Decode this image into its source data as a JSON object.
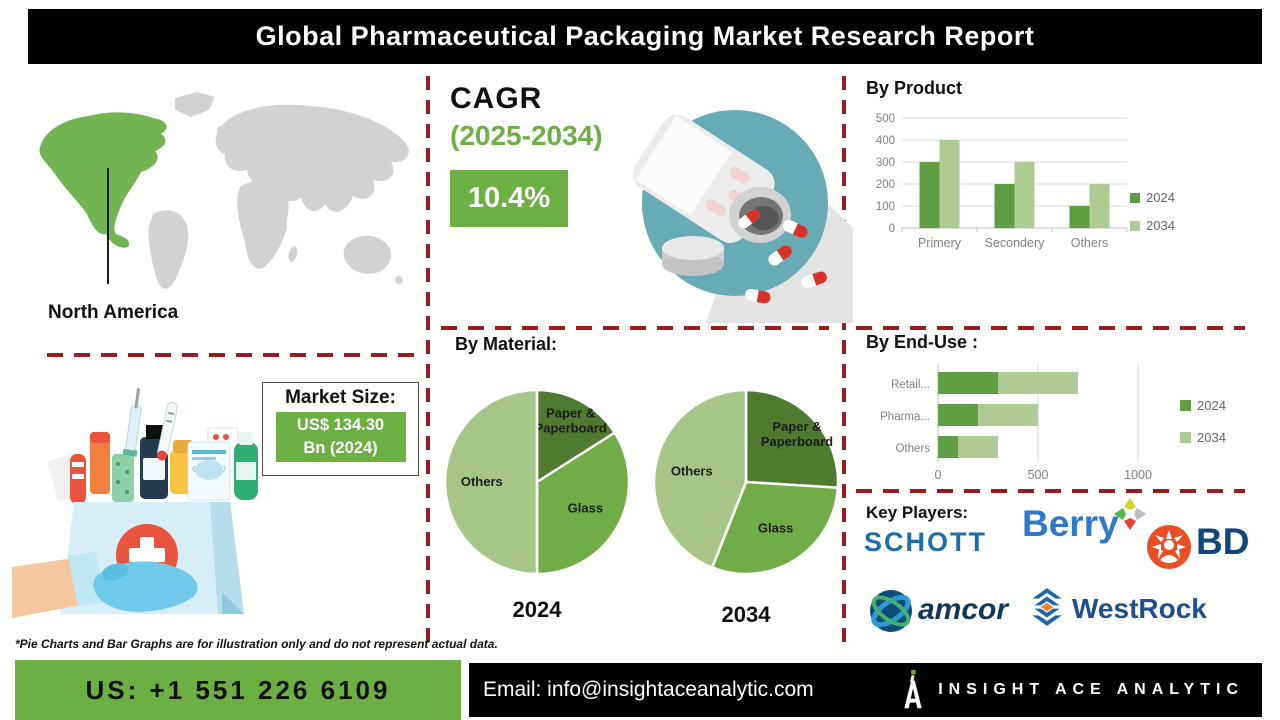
{
  "title": "Global Pharmaceutical Packaging Market Research Report",
  "region": {
    "label": "North America"
  },
  "cagr": {
    "heading": "CAGR",
    "period": "(2025-2034)",
    "value": "10.4%"
  },
  "market_size": {
    "label": "Market Size:",
    "value_line1": "US$ 134.30",
    "value_line2": "Bn (2024)"
  },
  "chart_data": [
    {
      "type": "bar",
      "title": "By Product",
      "categories": [
        "Primery",
        "Secondery",
        "Others"
      ],
      "series": [
        {
          "name": "2024",
          "values": [
            300,
            200,
            100
          ],
          "color": "#5f9e43"
        },
        {
          "name": "2034",
          "values": [
            400,
            300,
            200
          ],
          "color": "#aecb94"
        }
      ],
      "ylabel": "",
      "ylim": [
        0,
        500
      ],
      "yticks": [
        0,
        100,
        200,
        300,
        400,
        500
      ],
      "grid": true,
      "legend_position": "right"
    },
    {
      "type": "pie",
      "title": "By Material:",
      "year": "2024",
      "slices": [
        {
          "label": "Paper & Paperboard",
          "value": 16,
          "color": "#4e7b2f"
        },
        {
          "label": "Glass",
          "value": 34,
          "color": "#70ad47"
        },
        {
          "label": "Others",
          "value": 50,
          "color": "#a6c687"
        }
      ]
    },
    {
      "type": "pie",
      "title": "By Material:",
      "year": "2034",
      "slices": [
        {
          "label": "Paper & Paperboard",
          "value": 26,
          "color": "#4e7b2f"
        },
        {
          "label": "Glass",
          "value": 30,
          "color": "#70ad47"
        },
        {
          "label": "Others",
          "value": 44,
          "color": "#a6c687"
        }
      ]
    },
    {
      "type": "stacked-hbar",
      "title": "By End-Use :",
      "categories": [
        "Retail...",
        "Pharma...",
        "Others"
      ],
      "series": [
        {
          "name": "2024",
          "values": [
            300,
            200,
            100
          ],
          "color": "#5f9e43"
        },
        {
          "name": "2034",
          "values": [
            400,
            300,
            200
          ],
          "color": "#aecb94"
        }
      ],
      "xlim": [
        0,
        1000
      ],
      "xticks": [
        0,
        500,
        1000
      ],
      "grid": true,
      "legend_position": "right"
    }
  ],
  "key_players": {
    "heading": "Key Players:",
    "companies": [
      {
        "name": "SCHOTT",
        "color": "#1b6fae"
      },
      {
        "name": "Berry",
        "color": "#2e79c9"
      },
      {
        "name": "BD",
        "color": "#10457e"
      },
      {
        "name": "amcor",
        "color": "#12355b"
      },
      {
        "name": "WestRock",
        "color": "#1d4f91"
      }
    ]
  },
  "disclaimer": "*Pie Charts and Bar Graphs are for illustration only and do not represent actual data.",
  "footer": {
    "phone": "US: +1 551 226 6109",
    "email": "Email: info@insightaceanalytic.com",
    "brand": "INSIGHT ACE ANALYTIC"
  },
  "colors": {
    "accent_green": "#6cb044",
    "bar_2024": "#5f9e43",
    "bar_2034": "#aecb94",
    "pie_dark": "#4e7b2f",
    "pie_mid": "#70ad47",
    "pie_light": "#a6c687",
    "divider_red": "#9a1c1e",
    "map_highlight": "#72b352",
    "map_land": "#d2d2d2",
    "illustration_teal": "#66abb5",
    "bd_orange": "#e94e24",
    "westrock_orange": "#f5821f"
  }
}
